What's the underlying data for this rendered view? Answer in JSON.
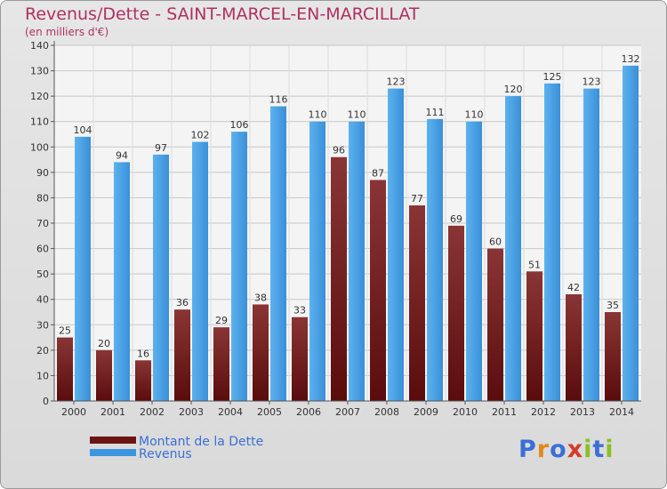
{
  "title": "Revenus/Dette - SAINT-MARCEL-EN-MARCILLAT",
  "subtitle": "(en milliers d'€)",
  "logo": {
    "letters": [
      "P",
      "r",
      "o",
      "x",
      "i",
      "t",
      "i"
    ],
    "colors": [
      "#3a6fd6",
      "#e08a1e",
      "#3a6fd6",
      "#d63a2a",
      "#8bbf2a",
      "#3a6fd6",
      "#8bbf2a"
    ]
  },
  "chart_data": {
    "type": "bar",
    "categories": [
      "2000",
      "2001",
      "2002",
      "2003",
      "2004",
      "2005",
      "2006",
      "2007",
      "2008",
      "2009",
      "2010",
      "2011",
      "2012",
      "2013",
      "2014"
    ],
    "series": [
      {
        "name": "Montant de la Dette",
        "color": "#7a1d1d",
        "values": [
          25,
          20,
          16,
          36,
          29,
          38,
          33,
          96,
          87,
          77,
          69,
          60,
          51,
          42,
          35
        ]
      },
      {
        "name": "Revenus",
        "color": "#3a96e0",
        "values": [
          104,
          94,
          97,
          102,
          106,
          116,
          110,
          110,
          123,
          111,
          110,
          120,
          125,
          123,
          132
        ]
      }
    ],
    "ylim": [
      0,
      140
    ],
    "yticks": [
      0,
      10,
      20,
      30,
      40,
      50,
      60,
      70,
      80,
      90,
      100,
      110,
      120,
      130,
      140
    ],
    "grid": true,
    "legend": "bottom-left"
  }
}
